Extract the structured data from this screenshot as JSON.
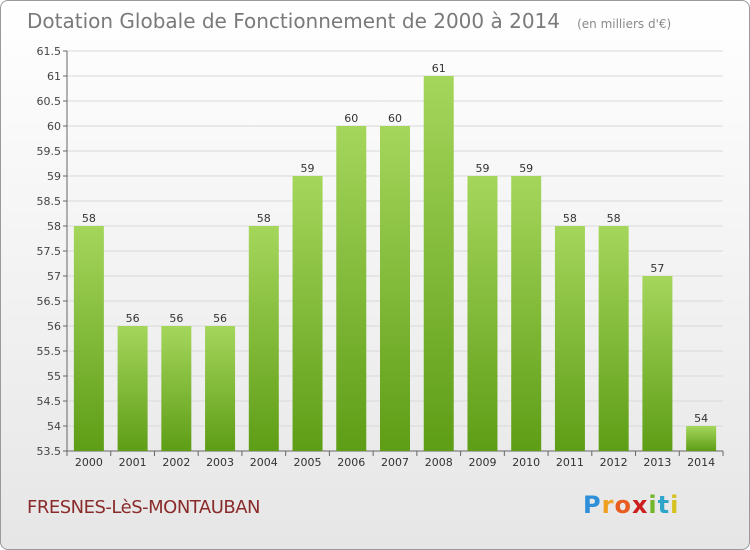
{
  "title": "Dotation Globale de Fonctionnement de 2000 à 2014",
  "unit": "(en milliers d'€)",
  "commune": "FRESNES-LèS-MONTAUBAN",
  "logo": {
    "letters": [
      "P",
      "r",
      "o",
      "x",
      "i",
      "t",
      "i"
    ],
    "colors": [
      "#2f8fd8",
      "#f0a020",
      "#e85d1f",
      "#cc1f1f",
      "#73b52b",
      "#2fa6c9",
      "#d6c21e"
    ]
  },
  "colors": {
    "bar_light": "#a5d65c",
    "bar_dark": "#5e9d16",
    "grid": "#d9d9d9"
  },
  "chart_data": {
    "type": "bar",
    "title": "Dotation Globale de Fonctionnement de 2000 à 2014",
    "xlabel": "",
    "ylabel": "",
    "categories": [
      "2000",
      "2001",
      "2002",
      "2003",
      "2004",
      "2005",
      "2006",
      "2007",
      "2008",
      "2009",
      "2010",
      "2011",
      "2012",
      "2013",
      "2014"
    ],
    "values": [
      58,
      56,
      56,
      56,
      58,
      59,
      60,
      60,
      61,
      59,
      59,
      58,
      58,
      57,
      54
    ],
    "value_labels": [
      "58",
      "56",
      "56",
      "56",
      "58",
      "59",
      "60",
      "60",
      "61",
      "59",
      "59",
      "58",
      "58",
      "57",
      "54"
    ],
    "ylim": [
      53.5,
      61.5
    ],
    "yticks": [
      53.5,
      54,
      54.5,
      55,
      55.5,
      56,
      56.5,
      57,
      57.5,
      58,
      58.5,
      59,
      59.5,
      60,
      60.5,
      61,
      61.5
    ],
    "ytick_labels": [
      "53.5",
      "54",
      "54.5",
      "55",
      "55.5",
      "56",
      "56.5",
      "57",
      "57.5",
      "58",
      "58.5",
      "59",
      "59.5",
      "60",
      "60.5",
      "61",
      "61.5"
    ],
    "grid": true,
    "legend": "none"
  }
}
